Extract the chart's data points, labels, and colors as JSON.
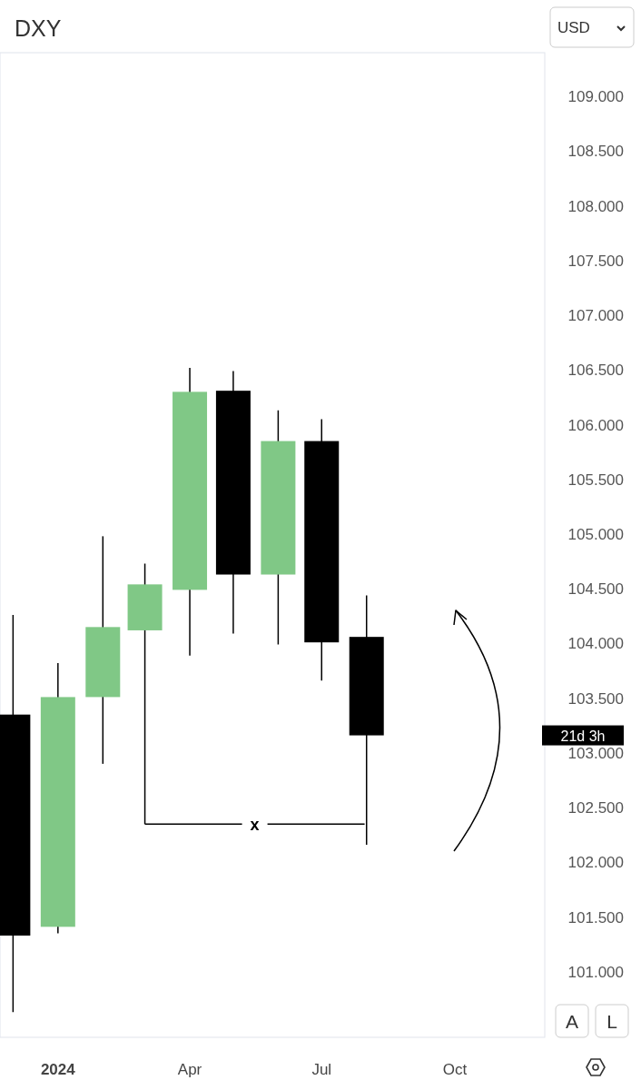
{
  "chart_data": {
    "type": "candlestick",
    "title": "DXY",
    "x": [
      "2023-12",
      "2024-01",
      "2024-02",
      "2024-03",
      "2024-04",
      "2024-05",
      "2024-06",
      "2024-07",
      "2024-08"
    ],
    "ohlc": [
      [
        103.35,
        104.26,
        100.63,
        101.33
      ],
      [
        101.41,
        103.82,
        101.35,
        103.51
      ],
      [
        103.51,
        104.98,
        102.9,
        104.15
      ],
      [
        104.12,
        104.73,
        102.35,
        104.54
      ],
      [
        104.49,
        106.52,
        103.89,
        106.3
      ],
      [
        106.31,
        106.49,
        104.09,
        104.63
      ],
      [
        104.63,
        106.13,
        103.99,
        105.85
      ],
      [
        105.85,
        106.05,
        103.66,
        104.01
      ],
      [
        104.06,
        104.44,
        102.16,
        103.16
      ]
    ],
    "colors": [
      "#000000",
      "#80c886",
      "#80c886",
      "#80c886",
      "#80c886",
      "#000000",
      "#80c886",
      "#000000",
      "#000000"
    ],
    "xlim": [
      "2023-11-22",
      "2024-12-02"
    ],
    "xticks": [
      {
        "value": "2024-01",
        "label": "2024"
      },
      {
        "value": "2024-04",
        "label": "Apr"
      },
      {
        "value": "2024-07",
        "label": "Jul"
      },
      {
        "value": "2024-10",
        "label": "Oct"
      }
    ],
    "ylim": [
      100.4,
      109.4
    ],
    "yticks": [
      {
        "value": 101,
        "label": "101.000"
      },
      {
        "value": 101.5,
        "label": "101.500"
      },
      {
        "value": 102,
        "label": "102.000"
      },
      {
        "value": 102.5,
        "label": "102.500"
      },
      {
        "value": 103,
        "label": "103.000"
      },
      {
        "value": 103.5,
        "label": "103.500"
      },
      {
        "value": 104,
        "label": "104.000"
      },
      {
        "value": 104.5,
        "label": "104.500"
      },
      {
        "value": 105,
        "label": "105.000"
      },
      {
        "value": 105.5,
        "label": "105.500"
      },
      {
        "value": 106,
        "label": "106.000"
      },
      {
        "value": 106.5,
        "label": "106.500"
      },
      {
        "value": 107,
        "label": "107.000"
      },
      {
        "value": 107.5,
        "label": "107.500"
      },
      {
        "value": 108,
        "label": "108.000"
      },
      {
        "value": 108.5,
        "label": "108.500"
      },
      {
        "value": 109,
        "label": "109.000"
      }
    ],
    "annotations": [
      "USD",
      "A",
      "L",
      {
        "text": "x",
        "x": "2024-03",
        "y": 102.35
      },
      "21d 3h"
    ]
  }
}
